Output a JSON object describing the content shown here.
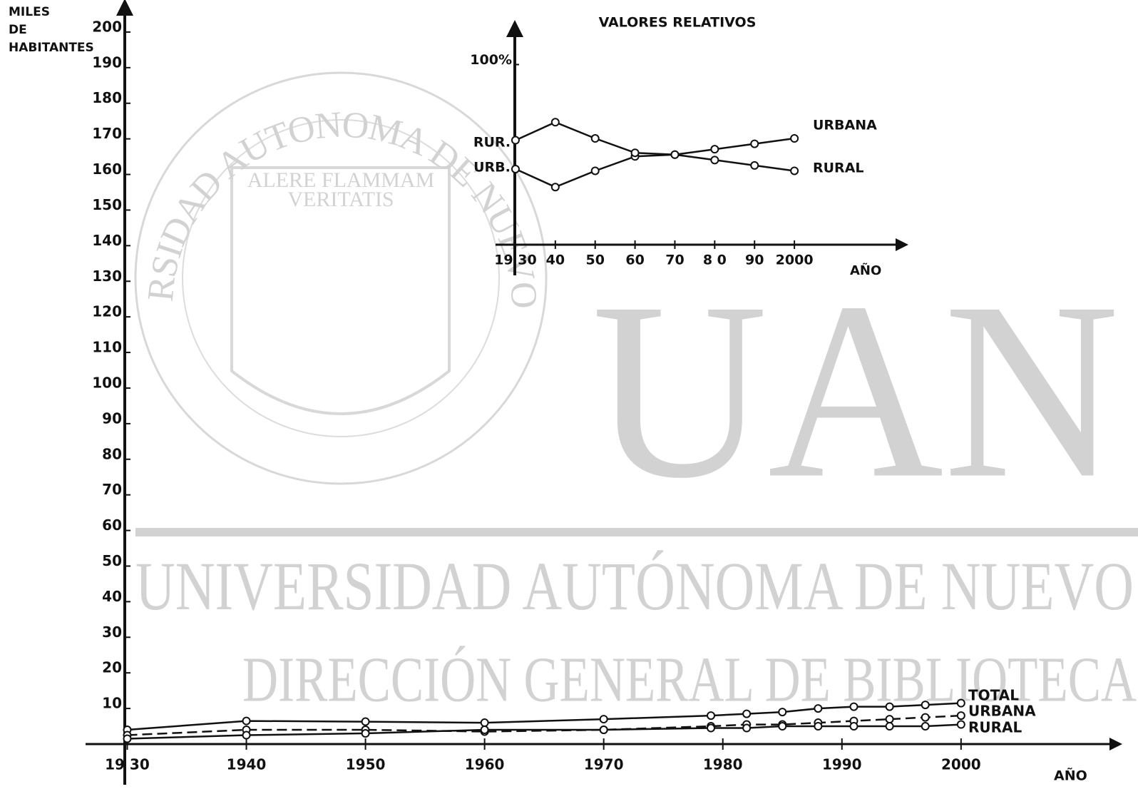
{
  "chart_data": [
    {
      "type": "line",
      "ylabel": [
        "MILES",
        "DE",
        "HABITANTES"
      ],
      "xlabel": "AÑO",
      "xlim": [
        1926.5,
        2013
      ],
      "ylim": [
        0,
        207
      ],
      "xticks": [
        {
          "value": 1930,
          "label": "19 30"
        },
        1940,
        1950,
        1960,
        1970,
        1980,
        1990,
        2000
      ],
      "yticks": [
        10,
        20,
        30,
        40,
        50,
        60,
        70,
        80,
        90,
        100,
        110,
        120,
        130,
        140,
        150,
        160,
        170,
        180,
        190,
        200
      ],
      "x": [
        1930,
        1940,
        1950,
        1960,
        1970,
        1979,
        1982,
        1985,
        1988,
        1991,
        1994,
        1997,
        2000
      ],
      "series": [
        {
          "name": "TOTAL",
          "color": "#111111",
          "values": [
            4,
            6.5,
            6.3,
            6,
            7,
            8,
            8.5,
            9,
            10,
            10.5,
            10.5,
            11,
            11.5
          ]
        },
        {
          "name": "URBANA",
          "color": "#111111",
          "values": [
            2.5,
            4,
            4,
            3.5,
            4,
            5,
            5.5,
            5.5,
            6,
            6.5,
            7,
            7.5,
            8
          ]
        },
        {
          "name": "RURAL",
          "color": "#111111",
          "values": [
            1.5,
            2.5,
            3,
            4,
            4,
            4.5,
            4.5,
            5,
            5,
            5,
            5,
            5,
            5.5
          ]
        }
      ]
    },
    {
      "type": "line",
      "title": "VALORES RELATIVOS",
      "xlabel": "AÑO",
      "annotations": [
        "RUR.",
        "URB."
      ],
      "xlim": [
        1925,
        2027
      ],
      "ylim": [
        0,
        120
      ],
      "xticks": [
        {
          "value": 1930,
          "label": "19 30"
        },
        {
          "value": 1940,
          "label": "40"
        },
        {
          "value": 1950,
          "label": "50"
        },
        {
          "value": 1960,
          "label": "60"
        },
        {
          "value": 1970,
          "label": "70"
        },
        {
          "value": 1980,
          "label": "8 0"
        },
        {
          "value": 1990,
          "label": "90"
        },
        {
          "value": 2000,
          "label": "2000"
        }
      ],
      "yticks": [
        {
          "value": 100,
          "label": "100%"
        }
      ],
      "x": [
        1930,
        1940,
        1950,
        1960,
        1970,
        1980,
        1990,
        2000
      ],
      "series": [
        {
          "name": "URBANA",
          "color": "#111111",
          "values": [
            42,
            32,
            41,
            49,
            50,
            53,
            56,
            59
          ]
        },
        {
          "name": "RURAL",
          "color": "#111111",
          "values": [
            58,
            68,
            59,
            51,
            50,
            47,
            44,
            41
          ]
        }
      ]
    }
  ],
  "watermark": {
    "seal": "UNIVERSIDAD AUTONOMA DE NUEVO LEON",
    "motto": [
      "ALERE FLAMMAM",
      "VERITATIS"
    ],
    "big": "UAN",
    "line1": "UNIVERSIDAD AUTÓNOMA DE NUEVO",
    "line2": "DIRECCIÓN GENERAL DE BIBLIOTECA"
  }
}
